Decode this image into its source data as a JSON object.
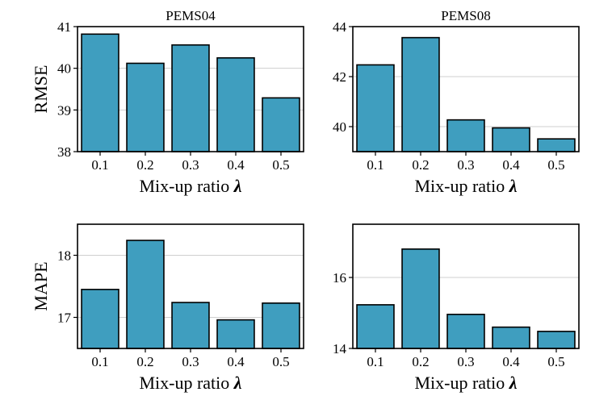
{
  "colors": {
    "bar": "#3f9ebf",
    "grid": "#cfcfcf",
    "axis": "#000000"
  },
  "chart_data": [
    {
      "type": "bar",
      "title": "PEMS04",
      "ylabel": "RMSE",
      "xlabel_text": "Mix-up ratio",
      "xlabel_symbol": "λ",
      "categories": [
        "0.1",
        "0.2",
        "0.3",
        "0.4",
        "0.5"
      ],
      "values": [
        40.82,
        40.12,
        40.56,
        40.25,
        39.29
      ],
      "ylim": [
        38,
        41
      ],
      "yticks": [
        38,
        39,
        40,
        41
      ],
      "grid": true
    },
    {
      "type": "bar",
      "title": "PEMS08",
      "ylabel": "",
      "xlabel_text": "Mix-up ratio",
      "xlabel_symbol": "λ",
      "categories": [
        "0.1",
        "0.2",
        "0.3",
        "0.4",
        "0.5"
      ],
      "values": [
        42.47,
        43.56,
        40.27,
        39.95,
        39.51
      ],
      "ylim": [
        39,
        44
      ],
      "yticks": [
        40,
        42,
        44
      ],
      "grid": true
    },
    {
      "type": "bar",
      "title": "",
      "ylabel": "MAPE",
      "xlabel_text": "Mix-up ratio",
      "xlabel_symbol": "λ",
      "categories": [
        "0.1",
        "0.2",
        "0.3",
        "0.4",
        "0.5"
      ],
      "values": [
        17.45,
        18.24,
        17.24,
        16.96,
        17.23
      ],
      "ylim": [
        16.5,
        18.5
      ],
      "yticks": [
        17,
        18
      ],
      "grid": true
    },
    {
      "type": "bar",
      "title": "",
      "ylabel": "",
      "xlabel_text": "Mix-up ratio",
      "xlabel_symbol": "λ",
      "categories": [
        "0.1",
        "0.2",
        "0.3",
        "0.4",
        "0.5"
      ],
      "values": [
        15.23,
        16.8,
        14.96,
        14.6,
        14.48
      ],
      "ylim": [
        14,
        17.5
      ],
      "yticks": [
        14,
        16
      ],
      "grid": true
    }
  ]
}
